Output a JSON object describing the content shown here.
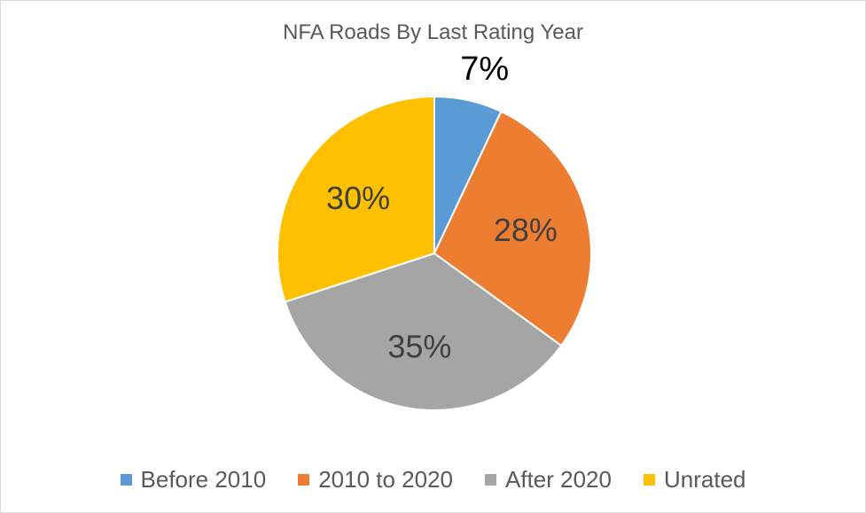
{
  "chart_data": {
    "type": "pie",
    "title": "NFA Roads By Last Rating Year",
    "categories": [
      "Before 2010",
      "2010 to 2020",
      "After 2020",
      "Unrated"
    ],
    "values": [
      7,
      28,
      35,
      30
    ],
    "labels": [
      "7%",
      "28%",
      "35%",
      "30%"
    ],
    "colors": [
      "#5b9bd5",
      "#ed7d31",
      "#a5a5a5",
      "#ffc000"
    ],
    "label_colors": [
      "#000000",
      "#404040",
      "#404040",
      "#404040"
    ],
    "legend_position": "bottom"
  }
}
